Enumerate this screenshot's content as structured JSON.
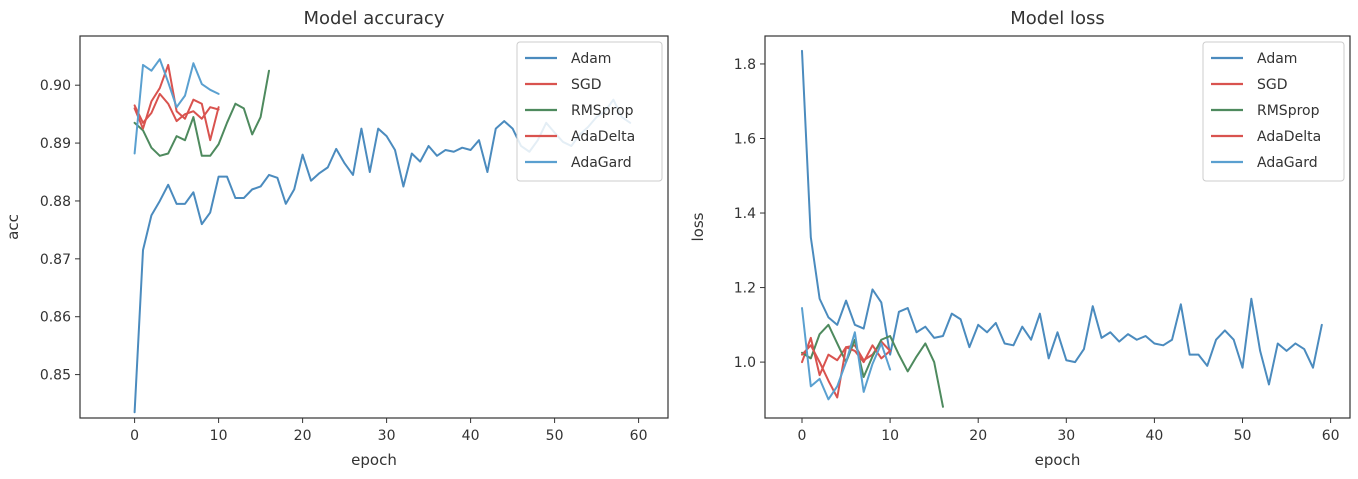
{
  "chart_data": [
    {
      "type": "line",
      "title": "Model accuracy",
      "xlabel": "epoch",
      "ylabel": "acc",
      "xlim": [
        -6.5,
        63.5
      ],
      "ylim": [
        0.8425,
        0.9085
      ],
      "xticks": [
        0,
        10,
        20,
        30,
        40,
        50,
        60
      ],
      "xtick_labels": [
        "0",
        "10",
        "20",
        "30",
        "40",
        "50",
        "60"
      ],
      "yticks": [
        0.85,
        0.86,
        0.87,
        0.88,
        0.89,
        0.9
      ],
      "ytick_labels": [
        "0.85",
        "0.86",
        "0.87",
        "0.88",
        "0.89",
        "0.90"
      ],
      "legend_position": "top-right",
      "grid": false,
      "series": [
        {
          "name": "Adam",
          "color": "#4b8bbe",
          "x": [
            0,
            1,
            2,
            3,
            4,
            5,
            6,
            7,
            8,
            9,
            10,
            11,
            12,
            13,
            14,
            15,
            16,
            17,
            18,
            19,
            20,
            21,
            22,
            23,
            24,
            25,
            26,
            27,
            28,
            29,
            30,
            31,
            32,
            33,
            34,
            35,
            36,
            37,
            38,
            39,
            40,
            41,
            42,
            43,
            44,
            45,
            46,
            47,
            48,
            49,
            50,
            51,
            52,
            53,
            54,
            55,
            56,
            57,
            58,
            59
          ],
          "y": [
            0.8435,
            0.8715,
            0.8775,
            0.88,
            0.8828,
            0.8795,
            0.8795,
            0.8815,
            0.876,
            0.878,
            0.8842,
            0.8842,
            0.8805,
            0.8805,
            0.882,
            0.8825,
            0.8845,
            0.884,
            0.8795,
            0.882,
            0.888,
            0.8835,
            0.8848,
            0.8858,
            0.889,
            0.8865,
            0.8845,
            0.8925,
            0.885,
            0.8925,
            0.8912,
            0.8888,
            0.8825,
            0.8882,
            0.8868,
            0.8895,
            0.8878,
            0.8888,
            0.8885,
            0.8892,
            0.8888,
            0.8905,
            0.885,
            0.8925,
            0.8938,
            0.8925,
            0.8895,
            0.8885,
            0.8905,
            0.8935,
            0.8918,
            0.8902,
            0.8895,
            0.8915,
            0.8928,
            0.8945,
            0.8955,
            0.8975,
            0.8945,
            0.8935
          ]
        },
        {
          "name": "SGD",
          "color": "#d9534f",
          "x": [
            0,
            1,
            2,
            3,
            4,
            5,
            6,
            7,
            8,
            9,
            10
          ],
          "y": [
            0.8965,
            0.8935,
            0.8952,
            0.8985,
            0.8968,
            0.8938,
            0.895,
            0.8955,
            0.8942,
            0.8962,
            0.8958
          ]
        },
        {
          "name": "RMSprop",
          "color": "#4e8a5e",
          "x": [
            0,
            1,
            2,
            3,
            4,
            5,
            6,
            7,
            8,
            9,
            10,
            11,
            12,
            13,
            14,
            15,
            16
          ],
          "y": [
            0.8935,
            0.8922,
            0.8892,
            0.8878,
            0.8882,
            0.8912,
            0.8905,
            0.8945,
            0.8878,
            0.8878,
            0.8898,
            0.8935,
            0.8968,
            0.896,
            0.8915,
            0.8945,
            0.9025
          ]
        },
        {
          "name": "AdaDelta",
          "color": "#d9534f",
          "x": [
            0,
            1,
            2,
            3,
            4,
            5,
            6,
            7,
            8,
            9,
            10
          ],
          "y": [
            0.896,
            0.8925,
            0.8972,
            0.8995,
            0.9035,
            0.8955,
            0.8942,
            0.8975,
            0.8968,
            0.8905,
            0.8962
          ]
        },
        {
          "name": "AdaGard",
          "color": "#5aa0d0",
          "x": [
            0,
            1,
            2,
            3,
            4,
            5,
            6,
            7,
            8,
            9,
            10
          ],
          "y": [
            0.8882,
            0.9035,
            0.9025,
            0.9045,
            0.9005,
            0.8962,
            0.8982,
            0.9038,
            0.9002,
            0.8992,
            0.8985
          ]
        }
      ]
    },
    {
      "type": "line",
      "title": "Model loss",
      "xlabel": "epoch",
      "ylabel": "loss",
      "xlim": [
        -4.2,
        62.2
      ],
      "ylim": [
        0.85,
        1.875
      ],
      "xticks": [
        0,
        10,
        20,
        30,
        40,
        50,
        60
      ],
      "xtick_labels": [
        "0",
        "10",
        "20",
        "30",
        "40",
        "50",
        "60"
      ],
      "yticks": [
        1.0,
        1.2,
        1.4,
        1.6,
        1.8
      ],
      "ytick_labels": [
        "1.0",
        "1.2",
        "1.4",
        "1.6",
        "1.8"
      ],
      "legend_position": "top-right",
      "grid": false,
      "series": [
        {
          "name": "Adam",
          "color": "#4b8bbe",
          "x": [
            0,
            1,
            2,
            3,
            4,
            5,
            6,
            7,
            8,
            9,
            10,
            11,
            12,
            13,
            14,
            15,
            16,
            17,
            18,
            19,
            20,
            21,
            22,
            23,
            24,
            25,
            26,
            27,
            28,
            29,
            30,
            31,
            32,
            33,
            34,
            35,
            36,
            37,
            38,
            39,
            40,
            41,
            42,
            43,
            44,
            45,
            46,
            47,
            48,
            49,
            50,
            51,
            52,
            53,
            54,
            55,
            56,
            57,
            58,
            59
          ],
          "y": [
            1.835,
            1.335,
            1.17,
            1.12,
            1.1,
            1.165,
            1.1,
            1.09,
            1.195,
            1.16,
            1.02,
            1.135,
            1.145,
            1.08,
            1.095,
            1.065,
            1.07,
            1.13,
            1.115,
            1.04,
            1.1,
            1.08,
            1.105,
            1.05,
            1.045,
            1.095,
            1.06,
            1.13,
            1.01,
            1.08,
            1.005,
            1.0,
            1.035,
            1.15,
            1.065,
            1.08,
            1.055,
            1.075,
            1.06,
            1.07,
            1.05,
            1.045,
            1.06,
            1.155,
            1.02,
            1.02,
            0.99,
            1.06,
            1.085,
            1.06,
            0.985,
            1.17,
            1.03,
            0.94,
            1.05,
            1.03,
            1.05,
            1.035,
            0.985,
            1.1
          ]
        },
        {
          "name": "SGD",
          "color": "#d9534f",
          "x": [
            0,
            1,
            2,
            3,
            4,
            5,
            6,
            7,
            8,
            9,
            10
          ],
          "y": [
            1.0,
            1.065,
            0.965,
            1.02,
            1.005,
            1.04,
            1.045,
            1.005,
            1.02,
            1.055,
            1.03
          ]
        },
        {
          "name": "RMSprop",
          "color": "#4e8a5e",
          "x": [
            0,
            1,
            2,
            3,
            4,
            5,
            6,
            7,
            8,
            9,
            10,
            11,
            12,
            13,
            14,
            15,
            16
          ],
          "y": [
            1.025,
            1.01,
            1.075,
            1.1,
            1.05,
            1.0,
            1.06,
            0.96,
            1.015,
            1.06,
            1.07,
            1.02,
            0.975,
            1.015,
            1.05,
            1.0,
            0.88
          ]
        },
        {
          "name": "AdaDelta",
          "color": "#d9534f",
          "x": [
            0,
            1,
            2,
            3,
            4,
            5,
            6,
            7,
            8,
            9,
            10
          ],
          "y": [
            1.02,
            1.045,
            1.0,
            0.95,
            0.905,
            1.04,
            1.03,
            1.0,
            1.045,
            1.01,
            1.03
          ]
        },
        {
          "name": "AdaGard",
          "color": "#5aa0d0",
          "x": [
            0,
            1,
            2,
            3,
            4,
            5,
            6,
            7,
            8,
            9,
            10
          ],
          "y": [
            1.145,
            0.935,
            0.955,
            0.9,
            0.935,
            1.0,
            1.08,
            0.92,
            0.995,
            1.05,
            0.98
          ]
        }
      ]
    }
  ]
}
